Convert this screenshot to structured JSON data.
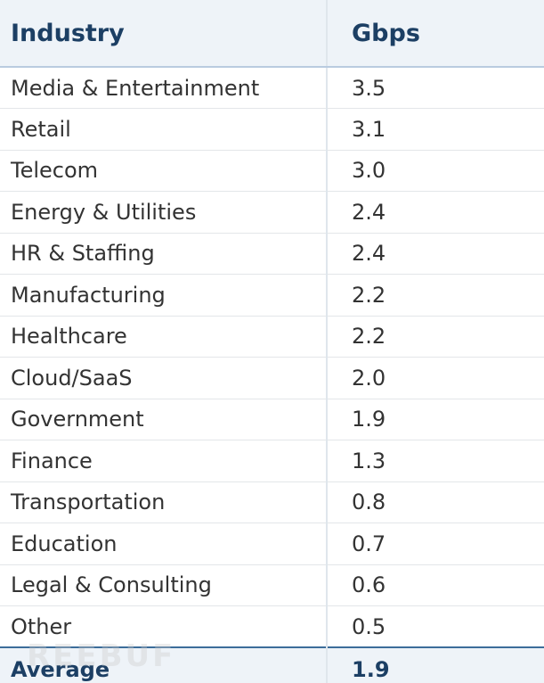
{
  "chart_data": {
    "type": "table",
    "columns": [
      "Industry",
      "Gbps"
    ],
    "rows": [
      {
        "industry": "Media & Entertainment",
        "gbps": "3.5"
      },
      {
        "industry": "Retail",
        "gbps": "3.1"
      },
      {
        "industry": "Telecom",
        "gbps": "3.0"
      },
      {
        "industry": "Energy & Utilities",
        "gbps": "2.4"
      },
      {
        "industry": "HR & Staffing",
        "gbps": "2.4"
      },
      {
        "industry": "Manufacturing",
        "gbps": "2.2"
      },
      {
        "industry": "Healthcare",
        "gbps": "2.2"
      },
      {
        "industry": "Cloud/SaaS",
        "gbps": "2.0"
      },
      {
        "industry": "Government",
        "gbps": "1.9"
      },
      {
        "industry": "Finance",
        "gbps": "1.3"
      },
      {
        "industry": "Transportation",
        "gbps": "0.8"
      },
      {
        "industry": "Education",
        "gbps": "0.7"
      },
      {
        "industry": "Legal & Consulting",
        "gbps": "0.6"
      },
      {
        "industry": "Other",
        "gbps": "0.5"
      }
    ],
    "footer": {
      "label": "Average",
      "gbps": "1.9"
    }
  },
  "watermark": "REEBUF",
  "colors": {
    "header_bg": "#eef3f8",
    "header_text": "#1c3f64",
    "body_text": "#333333"
  }
}
